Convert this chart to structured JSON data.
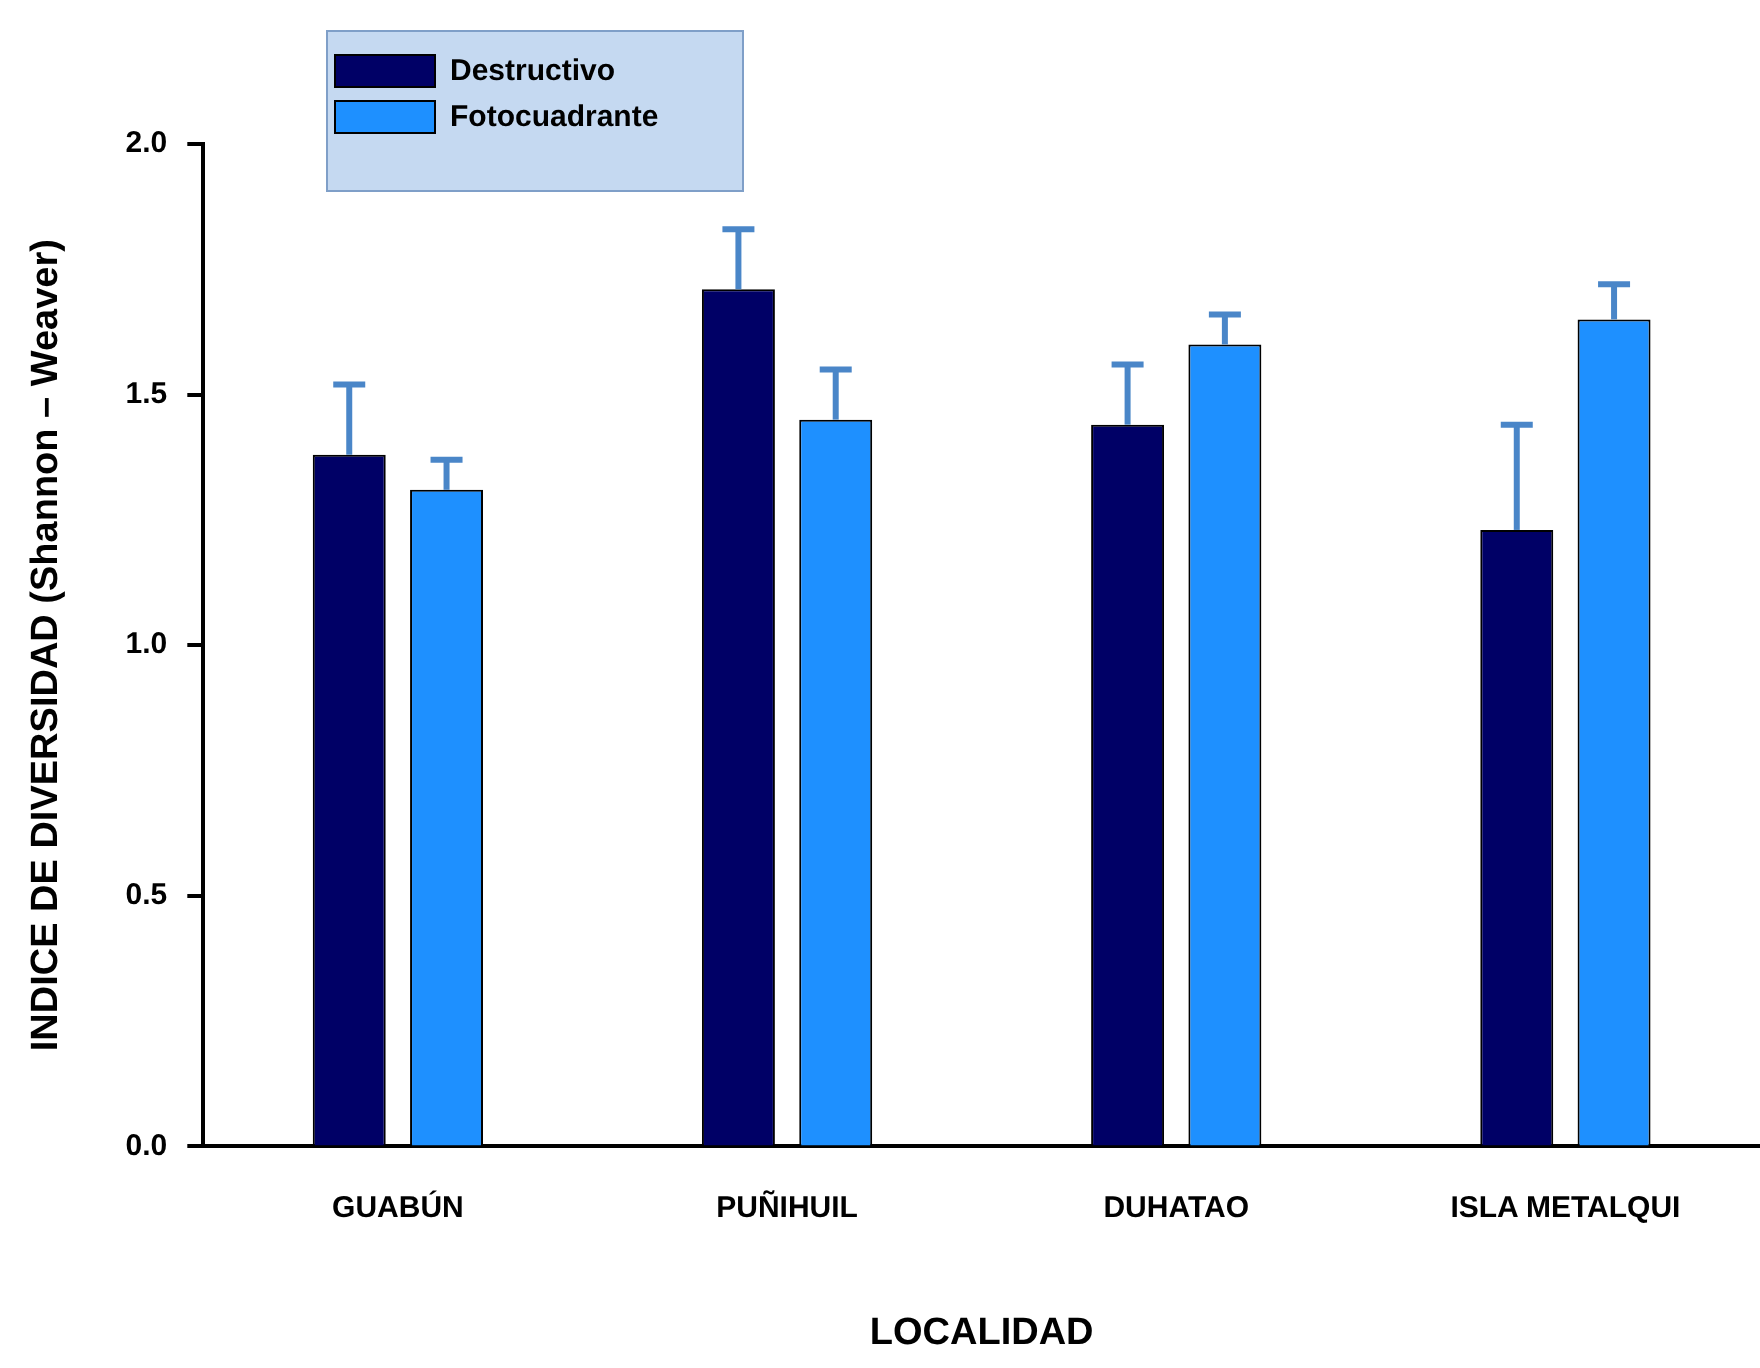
{
  "chart_data": {
    "type": "bar",
    "xlabel": "LOCALIDAD",
    "ylabel": "INDICE DE DIVERSIDAD (Shannon – Weaver)",
    "categories": [
      "GUABÚN",
      "PUÑIHUIL",
      "DUHATAO",
      "ISLA METALQUI"
    ],
    "series": [
      {
        "name": "Destructivo",
        "color": "#000066",
        "values": [
          1.38,
          1.71,
          1.44,
          1.23
        ],
        "errors": [
          [
            1.38,
            1.52
          ],
          [
            1.71,
            1.83
          ],
          [
            1.44,
            1.56
          ],
          [
            1.23,
            1.44
          ]
        ]
      },
      {
        "name": "Fotocuadrante",
        "color": "#1e90ff",
        "values": [
          1.31,
          1.45,
          1.6,
          1.65
        ],
        "errors": [
          [
            1.31,
            1.37
          ],
          [
            1.45,
            1.55
          ],
          [
            1.6,
            1.66
          ],
          [
            1.65,
            1.72
          ]
        ]
      }
    ],
    "ylim": [
      0,
      2
    ],
    "yticks": [
      {
        "value": 0,
        "label": "0.0"
      },
      {
        "value": 0.5,
        "label": "0.5"
      },
      {
        "value": 1,
        "label": "1.0"
      },
      {
        "value": 1.5,
        "label": "1.5"
      },
      {
        "value": 2,
        "label": "2.0"
      }
    ],
    "grid": false,
    "legend": "top left"
  }
}
